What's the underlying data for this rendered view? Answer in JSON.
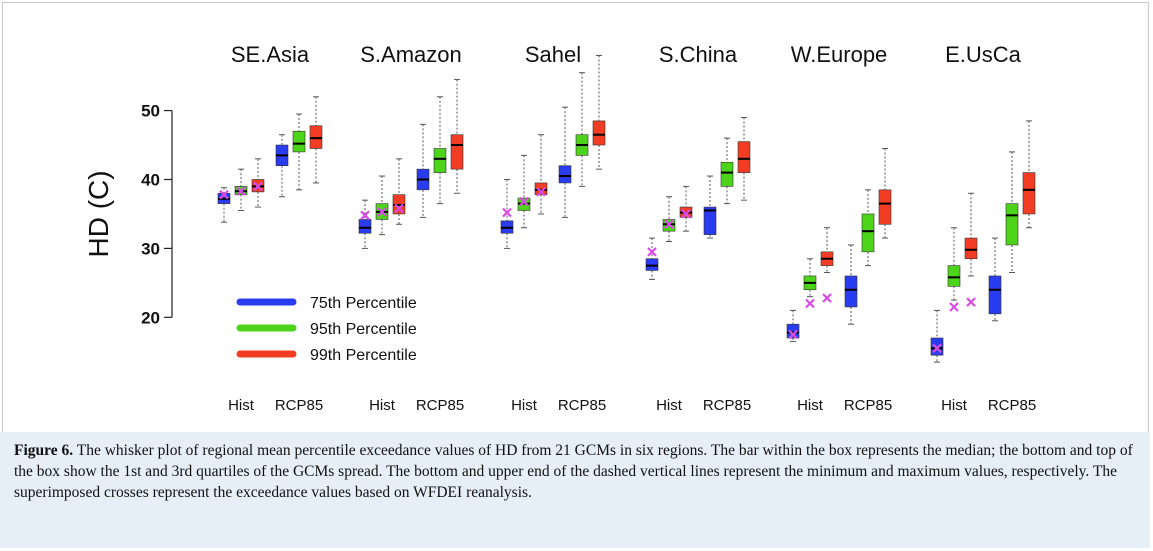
{
  "chart_data": {
    "type": "box",
    "ylabel": "HD (C)",
    "yticks": [
      20,
      30,
      40,
      50
    ],
    "ylim": [
      12.5,
      58.5
    ],
    "grid": false,
    "legend_position": "lower-left",
    "legend": [
      {
        "label": "75th Percentile",
        "color": "#2a3cf0"
      },
      {
        "label": "95th Percentile",
        "color": "#4cd41a"
      },
      {
        "label": "99th Percentile",
        "color": "#f23d24"
      }
    ],
    "cross_color": "#d84ce6",
    "regions": [
      {
        "name": "SE.Asia",
        "hist_label": "Hist",
        "rcp_label": "RCP85",
        "hist": [
          {
            "min": 33.8,
            "q1": 36.5,
            "median": 37.2,
            "q3": 38.0,
            "max": 38.8,
            "cross": 37.8
          },
          {
            "min": 35.5,
            "q1": 37.8,
            "median": 38.3,
            "q3": 39.0,
            "max": 41.5,
            "cross": 38.3
          },
          {
            "min": 36.0,
            "q1": 38.2,
            "median": 39.0,
            "q3": 40.0,
            "max": 43.0,
            "cross": 39.0
          }
        ],
        "rcp": [
          {
            "min": 37.5,
            "q1": 42.0,
            "median": 43.5,
            "q3": 45.0,
            "max": 46.5
          },
          {
            "min": 38.5,
            "q1": 44.0,
            "median": 45.2,
            "q3": 47.0,
            "max": 49.5
          },
          {
            "min": 39.5,
            "q1": 44.5,
            "median": 46.0,
            "q3": 47.8,
            "max": 52.0
          }
        ]
      },
      {
        "name": "S.Amazon",
        "hist_label": "Hist",
        "rcp_label": "RCP85",
        "hist": [
          {
            "min": 30.0,
            "q1": 32.2,
            "median": 33.0,
            "q3": 34.2,
            "max": 37.0,
            "cross": 34.8
          },
          {
            "min": 32.0,
            "q1": 34.2,
            "median": 35.3,
            "q3": 36.5,
            "max": 40.5,
            "cross": 35.3
          },
          {
            "min": 33.5,
            "q1": 35.0,
            "median": 36.3,
            "q3": 37.8,
            "max": 43.0,
            "cross": 35.8
          }
        ],
        "rcp": [
          {
            "min": 34.5,
            "q1": 38.5,
            "median": 40.0,
            "q3": 41.5,
            "max": 48.0
          },
          {
            "min": 36.5,
            "q1": 41.0,
            "median": 43.0,
            "q3": 44.5,
            "max": 52.0
          },
          {
            "min": 38.0,
            "q1": 41.5,
            "median": 45.0,
            "q3": 46.5,
            "max": 54.5
          }
        ]
      },
      {
        "name": "Sahel",
        "hist_label": "Hist",
        "rcp_label": "RCP85",
        "hist": [
          {
            "min": 30.0,
            "q1": 32.2,
            "median": 33.0,
            "q3": 34.0,
            "max": 40.0,
            "cross": 35.2
          },
          {
            "min": 33.0,
            "q1": 35.5,
            "median": 36.5,
            "q3": 37.3,
            "max": 43.5,
            "cross": 36.8
          },
          {
            "min": 35.0,
            "q1": 37.8,
            "median": 38.5,
            "q3": 39.5,
            "max": 46.5,
            "cross": 38.2
          }
        ],
        "rcp": [
          {
            "min": 34.5,
            "q1": 39.5,
            "median": 40.5,
            "q3": 42.0,
            "max": 50.5
          },
          {
            "min": 39.0,
            "q1": 43.5,
            "median": 45.0,
            "q3": 46.5,
            "max": 55.5
          },
          {
            "min": 41.5,
            "q1": 45.0,
            "median": 46.5,
            "q3": 48.5,
            "max": 58.0
          }
        ]
      },
      {
        "name": "S.China",
        "hist_label": "Hist",
        "rcp_label": "RCP85",
        "hist": [
          {
            "min": 25.5,
            "q1": 26.8,
            "median": 27.5,
            "q3": 28.5,
            "max": 31.5,
            "cross": 29.5
          },
          {
            "min": 31.0,
            "q1": 32.5,
            "median": 33.5,
            "q3": 34.2,
            "max": 37.5,
            "cross": 33.5
          },
          {
            "min": 32.5,
            "q1": 34.5,
            "median": 35.2,
            "q3": 36.0,
            "max": 39.0,
            "cross": 35.0
          }
        ],
        "rcp": [
          {
            "min": 31.5,
            "q1": 32.0,
            "median": 35.5,
            "q3": 36.0,
            "max": 40.5
          },
          {
            "min": 36.5,
            "q1": 39.0,
            "median": 41.0,
            "q3": 42.5,
            "max": 46.0
          },
          {
            "min": 37.0,
            "q1": 41.0,
            "median": 43.0,
            "q3": 45.5,
            "max": 49.0
          }
        ]
      },
      {
        "name": "W.Europe",
        "hist_label": "Hist",
        "rcp_label": "RCP85",
        "hist": [
          {
            "min": 16.5,
            "q1": 17.0,
            "median": 17.8,
            "q3": 19.0,
            "max": 21.0,
            "cross": 17.5
          },
          {
            "min": 23.0,
            "q1": 24.0,
            "median": 25.0,
            "q3": 26.0,
            "max": 28.5,
            "cross": 22.0
          },
          {
            "min": 26.5,
            "q1": 27.5,
            "median": 28.5,
            "q3": 29.5,
            "max": 33.0,
            "cross": 22.8
          }
        ],
        "rcp": [
          {
            "min": 19.0,
            "q1": 21.5,
            "median": 24.0,
            "q3": 26.0,
            "max": 30.5
          },
          {
            "min": 27.5,
            "q1": 29.5,
            "median": 32.5,
            "q3": 35.0,
            "max": 38.5
          },
          {
            "min": 31.5,
            "q1": 33.5,
            "median": 36.5,
            "q3": 38.5,
            "max": 44.5
          }
        ]
      },
      {
        "name": "E.UsCa",
        "hist_label": "Hist",
        "rcp_label": "RCP85",
        "hist": [
          {
            "min": 13.5,
            "q1": 14.5,
            "median": 15.5,
            "q3": 17.0,
            "max": 21.0,
            "cross": 15.5
          },
          {
            "min": 22.5,
            "q1": 24.5,
            "median": 25.8,
            "q3": 27.5,
            "max": 33.0,
            "cross": 21.5
          },
          {
            "min": 26.0,
            "q1": 28.5,
            "median": 29.8,
            "q3": 31.5,
            "max": 38.0,
            "cross": 22.2
          }
        ],
        "rcp": [
          {
            "min": 19.5,
            "q1": 20.5,
            "median": 24.0,
            "q3": 26.0,
            "max": 31.5
          },
          {
            "min": 26.5,
            "q1": 30.5,
            "median": 34.8,
            "q3": 36.5,
            "max": 44.0
          },
          {
            "min": 33.0,
            "q1": 35.0,
            "median": 38.5,
            "q3": 41.0,
            "max": 48.5
          }
        ]
      }
    ]
  },
  "caption": {
    "label": "Figure 6.",
    "text": "The whisker plot of regional mean percentile exceedance values of HD from 21 GCMs in six regions. The bar within the box represents the median; the bottom and top of the box show the 1st and 3rd quartiles of the GCMs spread. The bottom and upper end of the dashed vertical lines represent the minimum and maximum values, respectively. The superimposed crosses represent the exceedance values based on WFDEI reanalysis."
  }
}
